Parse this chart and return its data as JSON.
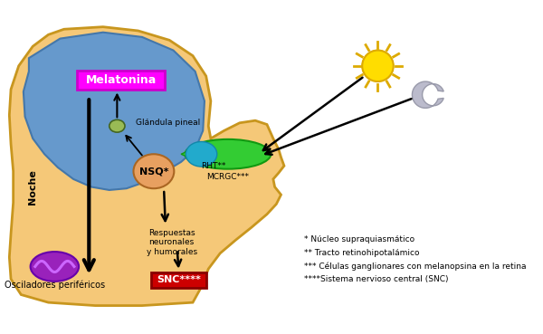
{
  "bg_color": "#ffffff",
  "skin_color": "#F5C878",
  "brain_color": "#6699CC",
  "head_outline_color": "#C8961E",
  "melatonina_bg": "#FF00FF",
  "melatonina_text": "#FFFFFF",
  "nsq_color": "#E8A060",
  "green_shape_color": "#33CC33",
  "teal_shape_color": "#22AACC",
  "pineal_color": "#99BB55",
  "osc_color": "#9922BB",
  "osc_wave_color": "#CC66FF",
  "snc_bg": "#CC0000",
  "snc_text": "#FFFFFF",
  "sun_color": "#FFDD00",
  "sun_ray_color": "#DDAA00",
  "moon_color": "#BBBBCC",
  "arrow_color": "#000000",
  "text_color": "#000000",
  "legend_lines": [
    "* Núcleo supraquiasmático",
    "** Tracto retinohipotalámico",
    "*** Células ganglionares con melanopsina en la retina",
    "****Sistema nervioso central (SNC)"
  ]
}
